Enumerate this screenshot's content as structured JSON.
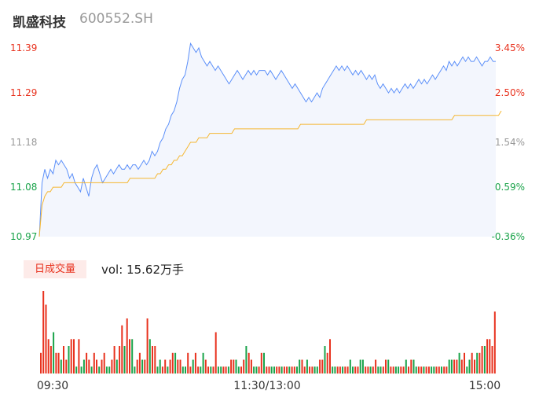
{
  "stock": {
    "name": "凯盛科技",
    "code": "600552.SH"
  },
  "volume_panel": {
    "tab_label": "日成交量",
    "volume_text": "vol: 15.62万手"
  },
  "colors": {
    "price_line": "#5b8ff9",
    "avg_line": "#f5b731",
    "up": "#e8321e",
    "down": "#1aa34a",
    "neutral": "#999999",
    "area_fill": "#f3f6fd"
  },
  "chart_data": [
    {
      "type": "line",
      "title": "",
      "series": [
        {
          "values": [
            10.97,
            11.09,
            11.12,
            11.1,
            11.12,
            11.11,
            11.14,
            11.13,
            11.14,
            11.13,
            11.12,
            11.1,
            11.11,
            11.09,
            11.08,
            11.07,
            11.1,
            11.08,
            11.06,
            11.1,
            11.12,
            11.13,
            11.11,
            11.09,
            11.1,
            11.11,
            11.12,
            11.11,
            11.12,
            11.13,
            11.12,
            11.12,
            11.13,
            11.12,
            11.13,
            11.13,
            11.12,
            11.13,
            11.14,
            11.13,
            11.14,
            11.16,
            11.15,
            11.16,
            11.18,
            11.19,
            11.21,
            11.22,
            11.24,
            11.25,
            11.27,
            11.3,
            11.32,
            11.33,
            11.36,
            11.4,
            11.39,
            11.38,
            11.39,
            11.37,
            11.36,
            11.35,
            11.36,
            11.35,
            11.34,
            11.35,
            11.34,
            11.33,
            11.32,
            11.31,
            11.32,
            11.33,
            11.34,
            11.33,
            11.32,
            11.33,
            11.34,
            11.33,
            11.34,
            11.33,
            11.34,
            11.34,
            11.34,
            11.33,
            11.34,
            11.33,
            11.32,
            11.33,
            11.34,
            11.33,
            11.32,
            11.31,
            11.3,
            11.31,
            11.3,
            11.29,
            11.28,
            11.27,
            11.28,
            11.27,
            11.28,
            11.29,
            11.28,
            11.3,
            11.31,
            11.32,
            11.33,
            11.34,
            11.35,
            11.34,
            11.35,
            11.34,
            11.35,
            11.34,
            11.33,
            11.34,
            11.33,
            11.34,
            11.33,
            11.32,
            11.33,
            11.32,
            11.33,
            11.31,
            11.3,
            11.31,
            11.3,
            11.29,
            11.3,
            11.29,
            11.3,
            11.29,
            11.3,
            11.31,
            11.3,
            11.31,
            11.3,
            11.31,
            11.32,
            11.31,
            11.32,
            11.31,
            11.32,
            11.33,
            11.32,
            11.33,
            11.34,
            11.35,
            11.34,
            11.36,
            11.35,
            11.36,
            11.35,
            11.36,
            11.37,
            11.36,
            11.37,
            11.36,
            11.36,
            11.37,
            11.36,
            11.35,
            11.36,
            11.36,
            11.37,
            11.36,
            11.36
          ],
          "color": "#5b8ff9"
        },
        {
          "values": [
            10.97,
            11.04,
            11.06,
            11.07,
            11.07,
            11.08,
            11.08,
            11.08,
            11.08,
            11.09,
            11.09,
            11.09,
            11.09,
            11.09,
            11.09,
            11.09,
            11.09,
            11.09,
            11.09,
            11.09,
            11.09,
            11.09,
            11.09,
            11.09,
            11.09,
            11.09,
            11.09,
            11.09,
            11.09,
            11.09,
            11.09,
            11.09,
            11.09,
            11.1,
            11.1,
            11.1,
            11.1,
            11.1,
            11.1,
            11.1,
            11.1,
            11.1,
            11.1,
            11.11,
            11.11,
            11.12,
            11.12,
            11.13,
            11.13,
            11.14,
            11.14,
            11.15,
            11.15,
            11.16,
            11.17,
            11.18,
            11.18,
            11.18,
            11.19,
            11.19,
            11.19,
            11.19,
            11.2,
            11.2,
            11.2,
            11.2,
            11.2,
            11.2,
            11.2,
            11.2,
            11.2,
            11.21,
            11.21,
            11.21,
            11.21,
            11.21,
            11.21,
            11.21,
            11.21,
            11.21,
            11.21,
            11.21,
            11.21,
            11.21,
            11.21,
            11.21,
            11.21,
            11.21,
            11.21,
            11.21,
            11.21,
            11.21,
            11.21,
            11.21,
            11.21,
            11.22,
            11.22,
            11.22,
            11.22,
            11.22,
            11.22,
            11.22,
            11.22,
            11.22,
            11.22,
            11.22,
            11.22,
            11.22,
            11.22,
            11.22,
            11.22,
            11.22,
            11.22,
            11.22,
            11.22,
            11.22,
            11.22,
            11.22,
            11.22,
            11.23,
            11.23,
            11.23,
            11.23,
            11.23,
            11.23,
            11.23,
            11.23,
            11.23,
            11.23,
            11.23,
            11.23,
            11.23,
            11.23,
            11.23,
            11.23,
            11.23,
            11.23,
            11.23,
            11.23,
            11.23,
            11.23,
            11.23,
            11.23,
            11.23,
            11.23,
            11.23,
            11.23,
            11.23,
            11.23,
            11.23,
            11.23,
            11.24,
            11.24,
            11.24,
            11.24,
            11.24,
            11.24,
            11.24,
            11.24,
            11.24,
            11.24,
            11.24,
            11.24,
            11.24,
            11.24,
            11.24,
            11.24,
            11.24,
            11.25
          ],
          "color": "#f5b731"
        }
      ],
      "y_ticks_left": [
        {
          "label": "11.39",
          "value": 11.39,
          "color": "#e8321e"
        },
        {
          "label": "11.29",
          "value": 11.29,
          "color": "#e8321e"
        },
        {
          "label": "11.18",
          "value": 11.18,
          "color": "#999999"
        },
        {
          "label": "11.08",
          "value": 11.08,
          "color": "#1aa34a"
        },
        {
          "label": "10.97",
          "value": 10.97,
          "color": "#1aa34a"
        }
      ],
      "y_ticks_right": [
        {
          "label": "3.45%",
          "value": 11.39,
          "color": "#e8321e"
        },
        {
          "label": "2.50%",
          "value": 11.29,
          "color": "#e8321e"
        },
        {
          "label": "1.54%",
          "value": 11.18,
          "color": "#999999"
        },
        {
          "label": "0.59%",
          "value": 11.08,
          "color": "#1aa34a"
        },
        {
          "label": "-0.36%",
          "value": 10.97,
          "color": "#1aa34a"
        }
      ],
      "ylim": [
        10.97,
        11.39
      ],
      "grid": false
    },
    {
      "type": "bar",
      "title": "",
      "x_ticks": [
        "09:30",
        "11:30/13:00",
        "15:00"
      ],
      "values": [
        3,
        12,
        10,
        5,
        4,
        6,
        3,
        3,
        2,
        4,
        2,
        4,
        5,
        5,
        1,
        5,
        1,
        2,
        3,
        2,
        1,
        3,
        2,
        1,
        2,
        3,
        1,
        1,
        2,
        4,
        2,
        4,
        7,
        4,
        8,
        5,
        5,
        1,
        2,
        3,
        2,
        2,
        8,
        5,
        4,
        4,
        1,
        2,
        1,
        2,
        1,
        2,
        3,
        3,
        2,
        2,
        1,
        1,
        3,
        1,
        2,
        3,
        1,
        1,
        3,
        2,
        1,
        1,
        1,
        6,
        1,
        1,
        1,
        1,
        1,
        2,
        2,
        2,
        1,
        1,
        2,
        4,
        3,
        2,
        1,
        1,
        1,
        3,
        3,
        1,
        1,
        1,
        1,
        1,
        1,
        1,
        1,
        1,
        1,
        1,
        1,
        1,
        2,
        2,
        1,
        2,
        1,
        1,
        1,
        1,
        2,
        2,
        4,
        3,
        5,
        1,
        1,
        1,
        1,
        1,
        1,
        1,
        2,
        1,
        1,
        1,
        2,
        2,
        1,
        1,
        1,
        1,
        2,
        1,
        1,
        1,
        2,
        2,
        1,
        1,
        1,
        1,
        1,
        1,
        2,
        1,
        2,
        2,
        1,
        1,
        1,
        1,
        1,
        1,
        1,
        1,
        1,
        1,
        1,
        1,
        1,
        2,
        2,
        2,
        2,
        3,
        2,
        3,
        1,
        2,
        3,
        2,
        3,
        3,
        4,
        4,
        5,
        5,
        4,
        9
      ],
      "colors": [
        "r",
        "r",
        "r",
        "r",
        "r",
        "g",
        "r",
        "r",
        "g",
        "r",
        "r",
        "g",
        "r",
        "r",
        "g",
        "r",
        "g",
        "g",
        "r",
        "r",
        "g",
        "r",
        "r",
        "g",
        "r",
        "r",
        "g",
        "g",
        "r",
        "r",
        "g",
        "r",
        "r",
        "g",
        "r",
        "r",
        "g",
        "g",
        "r",
        "r",
        "g",
        "r",
        "r",
        "g",
        "r",
        "r",
        "g",
        "g",
        "r",
        "r",
        "g",
        "r",
        "r",
        "g",
        "r",
        "r",
        "g",
        "g",
        "r",
        "r",
        "g",
        "r",
        "r",
        "g",
        "g",
        "r",
        "r",
        "g",
        "r",
        "r",
        "g",
        "g",
        "r",
        "r",
        "g",
        "r",
        "r",
        "g",
        "g",
        "r",
        "r",
        "g",
        "r",
        "r",
        "g",
        "g",
        "r",
        "r",
        "g",
        "r",
        "r",
        "g",
        "g",
        "r",
        "r",
        "g",
        "r",
        "r",
        "g",
        "r",
        "r",
        "g",
        "g",
        "r",
        "r",
        "g",
        "r",
        "r",
        "g",
        "g",
        "r",
        "r",
        "g",
        "r",
        "r",
        "g",
        "g",
        "r",
        "r",
        "g",
        "r",
        "r",
        "g",
        "g",
        "r",
        "r",
        "g",
        "g",
        "r",
        "r",
        "g",
        "r",
        "r",
        "g",
        "g",
        "r",
        "r",
        "g",
        "r",
        "r",
        "g",
        "g",
        "r",
        "r",
        "g",
        "r",
        "r",
        "g",
        "g",
        "r",
        "r",
        "g",
        "r",
        "r",
        "g",
        "g",
        "r",
        "r",
        "g",
        "r",
        "r",
        "g",
        "g",
        "r",
        "r",
        "g",
        "r",
        "r",
        "g",
        "g",
        "r",
        "r",
        "g",
        "r",
        "r",
        "g",
        "r",
        "r"
      ]
    }
  ]
}
